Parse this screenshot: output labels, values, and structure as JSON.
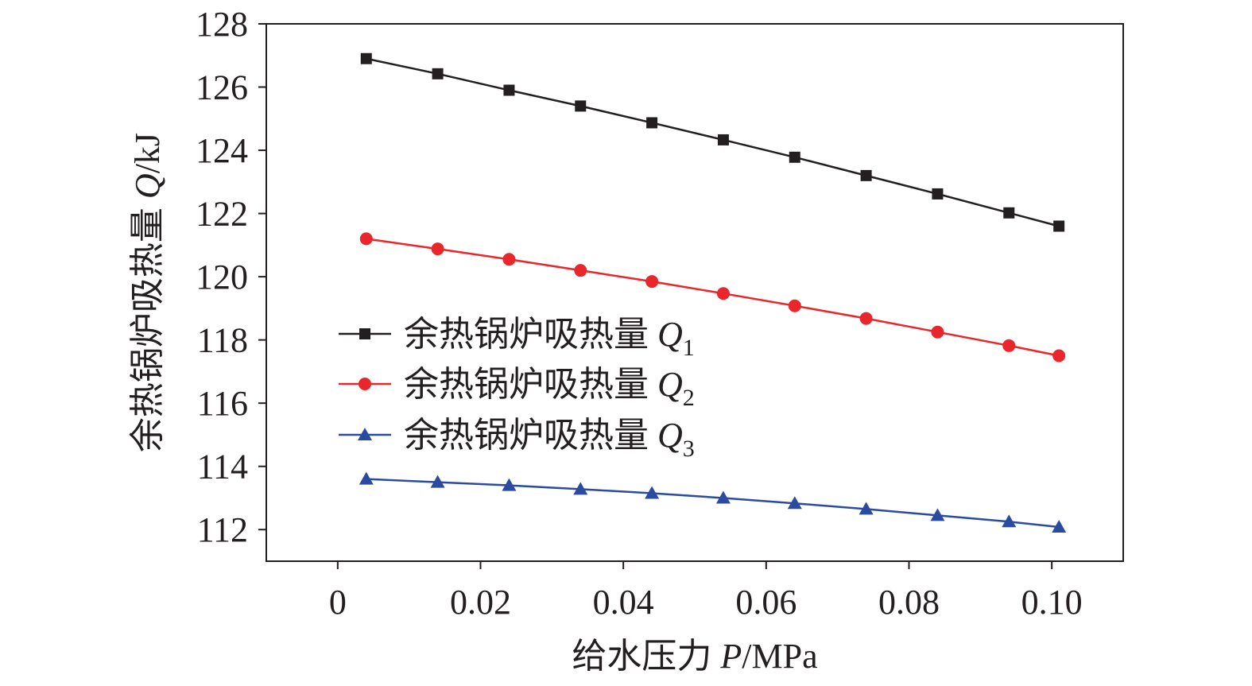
{
  "chart_data": {
    "type": "line",
    "xlabel": {
      "prefix": "给水压力 ",
      "var": "P",
      "unit": "/MPa"
    },
    "ylabel": {
      "prefix": "余热锅炉吸热量 ",
      "var": "Q",
      "unit": "/kJ"
    },
    "xlim": [
      -0.01,
      0.11
    ],
    "ylim": [
      111,
      128
    ],
    "xticks": [
      0,
      0.02,
      0.04,
      0.06,
      0.08,
      0.1
    ],
    "xtick_labels": [
      "0",
      "0.02",
      "0.04",
      "0.06",
      "0.08",
      "0.10"
    ],
    "yticks": [
      112,
      114,
      116,
      118,
      120,
      122,
      124,
      126,
      128
    ],
    "ytick_labels": [
      "112",
      "114",
      "116",
      "118",
      "120",
      "122",
      "124",
      "126",
      "128"
    ],
    "grid": false,
    "legend_position": "center-left",
    "x": [
      0.004,
      0.014,
      0.024,
      0.034,
      0.044,
      0.054,
      0.064,
      0.074,
      0.084,
      0.094,
      0.101
    ],
    "series": [
      {
        "name": "余热锅炉吸热量 Q1",
        "label_prefix": "余热锅炉吸热量 ",
        "var": "Q",
        "sub": "1",
        "color": "#231f20",
        "marker": "square",
        "values": [
          126.9,
          126.42,
          125.9,
          125.4,
          124.87,
          124.33,
          123.78,
          123.2,
          122.62,
          122.02,
          121.6
        ]
      },
      {
        "name": "余热锅炉吸热量 Q2",
        "label_prefix": "余热锅炉吸热量 ",
        "var": "Q",
        "sub": "2",
        "color": "#e8262b",
        "marker": "circle",
        "values": [
          121.2,
          120.88,
          120.55,
          120.2,
          119.85,
          119.47,
          119.08,
          118.68,
          118.25,
          117.82,
          117.5
        ]
      },
      {
        "name": "余热锅炉吸热量 Q3",
        "label_prefix": "余热锅炉吸热量 ",
        "var": "Q",
        "sub": "3",
        "color": "#2b4ba0",
        "marker": "triangle",
        "values": [
          113.6,
          113.5,
          113.4,
          113.28,
          113.15,
          113.0,
          112.83,
          112.65,
          112.45,
          112.25,
          112.08
        ]
      }
    ]
  }
}
